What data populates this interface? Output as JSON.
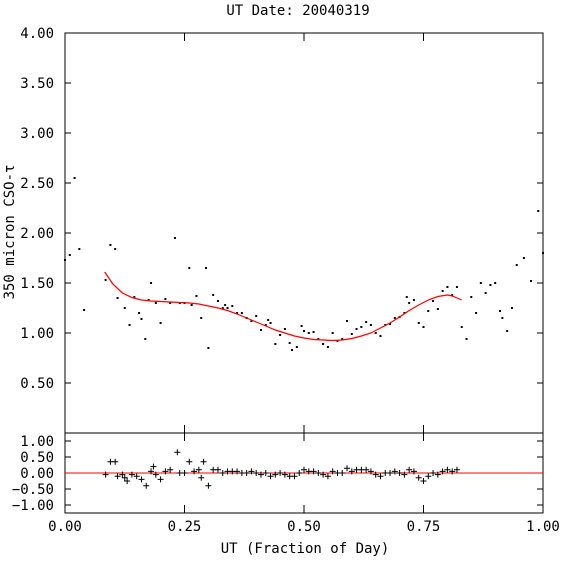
{
  "chart_data": [
    {
      "panel": "main",
      "type": "scatter",
      "title": "UT Date: 20040319",
      "ylabel": "350 micron CSO-τ",
      "xlim": [
        0.0,
        1.0
      ],
      "ylim": [
        0.0,
        4.0
      ],
      "yticks": [
        0.5,
        1.0,
        1.5,
        2.0,
        2.5,
        3.0,
        3.5,
        4.0
      ],
      "ytick_labels": [
        "0.50",
        "1.00",
        "1.50",
        "2.00",
        "2.50",
        "3.00",
        "3.50",
        "4.00"
      ],
      "series": [
        {
          "marker": "dot",
          "color": "#000000",
          "points": [
            [
              0.0,
              1.73
            ],
            [
              0.01,
              1.78
            ],
            [
              0.02,
              2.55
            ],
            [
              0.03,
              1.84
            ],
            [
              0.04,
              1.23
            ],
            [
              0.085,
              1.53
            ],
            [
              0.095,
              1.88
            ],
            [
              0.105,
              1.84
            ],
            [
              0.11,
              1.35
            ],
            [
              0.125,
              1.25
            ],
            [
              0.135,
              1.08
            ],
            [
              0.145,
              1.36
            ],
            [
              0.155,
              1.2
            ],
            [
              0.16,
              1.14
            ],
            [
              0.168,
              0.94
            ],
            [
              0.175,
              1.33
            ],
            [
              0.18,
              1.5
            ],
            [
              0.19,
              1.3
            ],
            [
              0.2,
              1.1
            ],
            [
              0.21,
              1.34
            ],
            [
              0.22,
              1.3
            ],
            [
              0.23,
              1.95
            ],
            [
              0.24,
              1.3
            ],
            [
              0.25,
              1.3
            ],
            [
              0.26,
              1.65
            ],
            [
              0.265,
              1.28
            ],
            [
              0.275,
              1.37
            ],
            [
              0.285,
              1.15
            ],
            [
              0.295,
              1.65
            ],
            [
              0.3,
              0.85
            ],
            [
              0.31,
              1.38
            ],
            [
              0.32,
              1.32
            ],
            [
              0.33,
              1.25
            ],
            [
              0.335,
              1.28
            ],
            [
              0.34,
              1.25
            ],
            [
              0.35,
              1.27
            ],
            [
              0.36,
              1.2
            ],
            [
              0.37,
              1.2
            ],
            [
              0.38,
              1.15
            ],
            [
              0.39,
              1.12
            ],
            [
              0.4,
              1.17
            ],
            [
              0.41,
              1.03
            ],
            [
              0.42,
              1.08
            ],
            [
              0.425,
              1.13
            ],
            [
              0.43,
              1.1
            ],
            [
              0.44,
              0.89
            ],
            [
              0.45,
              0.98
            ],
            [
              0.46,
              1.04
            ],
            [
              0.47,
              0.9
            ],
            [
              0.475,
              0.83
            ],
            [
              0.485,
              0.86
            ],
            [
              0.495,
              1.07
            ],
            [
              0.5,
              1.02
            ],
            [
              0.51,
              1.0
            ],
            [
              0.52,
              1.01
            ],
            [
              0.53,
              0.94
            ],
            [
              0.54,
              0.89
            ],
            [
              0.55,
              0.86
            ],
            [
              0.56,
              1.0
            ],
            [
              0.57,
              0.92
            ],
            [
              0.58,
              0.94
            ],
            [
              0.59,
              1.12
            ],
            [
              0.6,
              0.99
            ],
            [
              0.61,
              1.04
            ],
            [
              0.62,
              1.06
            ],
            [
              0.63,
              1.11
            ],
            [
              0.64,
              1.08
            ],
            [
              0.65,
              1.0
            ],
            [
              0.66,
              0.97
            ],
            [
              0.67,
              1.08
            ],
            [
              0.68,
              1.09
            ],
            [
              0.69,
              1.15
            ],
            [
              0.7,
              1.16
            ],
            [
              0.71,
              1.2
            ],
            [
              0.715,
              1.36
            ],
            [
              0.72,
              1.3
            ],
            [
              0.73,
              1.33
            ],
            [
              0.74,
              1.1
            ],
            [
              0.75,
              1.06
            ],
            [
              0.76,
              1.22
            ],
            [
              0.77,
              1.32
            ],
            [
              0.78,
              1.24
            ],
            [
              0.79,
              1.42
            ],
            [
              0.8,
              1.46
            ],
            [
              0.81,
              1.38
            ],
            [
              0.82,
              1.46
            ],
            [
              0.83,
              1.06
            ],
            [
              0.84,
              0.94
            ],
            [
              0.85,
              1.36
            ],
            [
              0.86,
              1.2
            ],
            [
              0.87,
              1.5
            ],
            [
              0.88,
              1.4
            ],
            [
              0.89,
              1.48
            ],
            [
              0.9,
              1.5
            ],
            [
              0.91,
              1.22
            ],
            [
              0.915,
              1.15
            ],
            [
              0.925,
              1.02
            ],
            [
              0.935,
              1.25
            ],
            [
              0.945,
              1.68
            ],
            [
              0.96,
              1.75
            ],
            [
              0.975,
              1.52
            ],
            [
              0.99,
              2.22
            ],
            [
              1.0,
              1.8
            ]
          ]
        },
        {
          "marker": "line",
          "color": "#ff0000",
          "points": [
            [
              0.083,
              1.61
            ],
            [
              0.1,
              1.49
            ],
            [
              0.12,
              1.4
            ],
            [
              0.14,
              1.355
            ],
            [
              0.16,
              1.33
            ],
            [
              0.18,
              1.32
            ],
            [
              0.2,
              1.315
            ],
            [
              0.22,
              1.31
            ],
            [
              0.24,
              1.305
            ],
            [
              0.26,
              1.3
            ],
            [
              0.28,
              1.29
            ],
            [
              0.3,
              1.27
            ],
            [
              0.32,
              1.25
            ],
            [
              0.34,
              1.225
            ],
            [
              0.36,
              1.19
            ],
            [
              0.38,
              1.15
            ],
            [
              0.4,
              1.11
            ],
            [
              0.42,
              1.07
            ],
            [
              0.44,
              1.03
            ],
            [
              0.46,
              1.0
            ],
            [
              0.48,
              0.97
            ],
            [
              0.5,
              0.95
            ],
            [
              0.52,
              0.935
            ],
            [
              0.54,
              0.93
            ],
            [
              0.56,
              0.925
            ],
            [
              0.58,
              0.93
            ],
            [
              0.6,
              0.945
            ],
            [
              0.62,
              0.97
            ],
            [
              0.64,
              1.0
            ],
            [
              0.66,
              1.05
            ],
            [
              0.68,
              1.1
            ],
            [
              0.7,
              1.16
            ],
            [
              0.72,
              1.225
            ],
            [
              0.74,
              1.28
            ],
            [
              0.76,
              1.33
            ],
            [
              0.78,
              1.365
            ],
            [
              0.8,
              1.38
            ],
            [
              0.81,
              1.37
            ],
            [
              0.82,
              1.35
            ],
            [
              0.83,
              1.33
            ]
          ]
        }
      ]
    },
    {
      "panel": "residuals",
      "type": "scatter",
      "xlabel": "UT (Fraction of Day)",
      "xlim": [
        0.0,
        1.0
      ],
      "ylim": [
        -1.25,
        1.25
      ],
      "xticks": [
        0.0,
        0.25,
        0.5,
        0.75,
        1.0
      ],
      "xtick_labels": [
        "0.00",
        "0.25",
        "0.50",
        "0.75",
        "1.00"
      ],
      "yticks": [
        -1.0,
        -0.5,
        0.0,
        0.5,
        1.0
      ],
      "ytick_labels": [
        "−1.00",
        "−0.50",
        "0.00",
        "0.50",
        "1.00"
      ],
      "zero_line_color": "#ff0000",
      "series": [
        {
          "marker": "plus",
          "color": "#000000",
          "points": [
            [
              0.085,
              -0.05
            ],
            [
              0.095,
              0.35
            ],
            [
              0.105,
              0.35
            ],
            [
              0.11,
              -0.1
            ],
            [
              0.12,
              -0.05
            ],
            [
              0.125,
              -0.15
            ],
            [
              0.13,
              -0.25
            ],
            [
              0.14,
              -0.05
            ],
            [
              0.15,
              -0.1
            ],
            [
              0.16,
              -0.2
            ],
            [
              0.17,
              -0.4
            ],
            [
              0.18,
              0.05
            ],
            [
              0.185,
              0.2
            ],
            [
              0.19,
              -0.05
            ],
            [
              0.2,
              -0.2
            ],
            [
              0.21,
              0.05
            ],
            [
              0.22,
              0.1
            ],
            [
              0.235,
              0.65
            ],
            [
              0.24,
              0.0
            ],
            [
              0.25,
              0.0
            ],
            [
              0.26,
              0.35
            ],
            [
              0.27,
              0.05
            ],
            [
              0.28,
              0.1
            ],
            [
              0.285,
              -0.15
            ],
            [
              0.29,
              0.35
            ],
            [
              0.3,
              -0.4
            ],
            [
              0.31,
              0.1
            ],
            [
              0.32,
              0.1
            ],
            [
              0.33,
              0.0
            ],
            [
              0.34,
              0.05
            ],
            [
              0.35,
              0.05
            ],
            [
              0.36,
              0.05
            ],
            [
              0.37,
              0.0
            ],
            [
              0.38,
              0.0
            ],
            [
              0.39,
              0.05
            ],
            [
              0.4,
              0.0
            ],
            [
              0.41,
              -0.05
            ],
            [
              0.42,
              0.0
            ],
            [
              0.43,
              -0.1
            ],
            [
              0.44,
              -0.05
            ],
            [
              0.45,
              0.0
            ],
            [
              0.46,
              -0.05
            ],
            [
              0.47,
              -0.1
            ],
            [
              0.48,
              -0.1
            ],
            [
              0.49,
              0.0
            ],
            [
              0.5,
              0.1
            ],
            [
              0.51,
              0.05
            ],
            [
              0.52,
              0.05
            ],
            [
              0.53,
              0.0
            ],
            [
              0.54,
              -0.05
            ],
            [
              0.55,
              -0.1
            ],
            [
              0.56,
              0.05
            ],
            [
              0.57,
              0.0
            ],
            [
              0.58,
              0.0
            ],
            [
              0.59,
              0.15
            ],
            [
              0.6,
              0.05
            ],
            [
              0.61,
              0.1
            ],
            [
              0.62,
              0.1
            ],
            [
              0.63,
              0.1
            ],
            [
              0.64,
              0.05
            ],
            [
              0.65,
              -0.05
            ],
            [
              0.66,
              -0.1
            ],
            [
              0.67,
              0.0
            ],
            [
              0.68,
              0.0
            ],
            [
              0.69,
              0.05
            ],
            [
              0.7,
              0.0
            ],
            [
              0.71,
              -0.05
            ],
            [
              0.72,
              0.1
            ],
            [
              0.73,
              0.05
            ],
            [
              0.74,
              -0.15
            ],
            [
              0.75,
              -0.25
            ],
            [
              0.76,
              -0.1
            ],
            [
              0.77,
              0.0
            ],
            [
              0.78,
              -0.05
            ],
            [
              0.79,
              0.05
            ],
            [
              0.8,
              0.1
            ],
            [
              0.81,
              0.05
            ],
            [
              0.82,
              0.1
            ]
          ]
        }
      ]
    }
  ]
}
